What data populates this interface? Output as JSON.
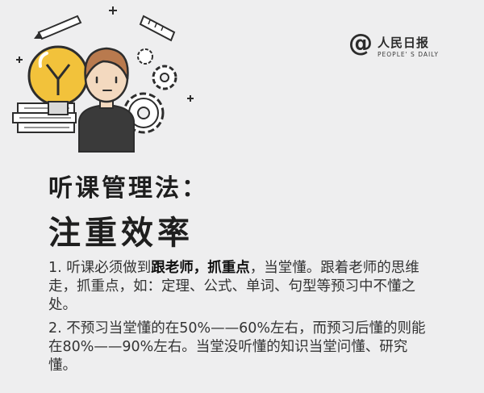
{
  "logo": {
    "at_symbol": "@",
    "name": "人民日报",
    "english": "PEOPLE' S DAILY"
  },
  "title": "听课管理法：",
  "subtitle": "注重效率",
  "points": [
    {
      "seg1": "1. 听课必须做到",
      "bold1": "跟老师，抓重点",
      "seg2": "，当堂懂。跟着老师的思维走，抓重点，如：定理、公式、单词、句型等预习中不懂之处。"
    },
    {
      "text": "2. 不预习当堂懂的在50%——60%左右，而预习后懂的则能在80%——90%左右。当堂没听懂的知识当堂问懂、研究懂。"
    }
  ],
  "colors": {
    "background": "#eeeeef",
    "bulb": "#f2c23b",
    "outline": "#2d2d2d",
    "shirt": "#3a3a3a",
    "skin": "#f3d9bf",
    "hair": "#b97a4e"
  },
  "icons": [
    "pencil-icon",
    "ruler-icon",
    "lightbulb-icon",
    "gear-icon",
    "books-icon",
    "person-avatar"
  ]
}
